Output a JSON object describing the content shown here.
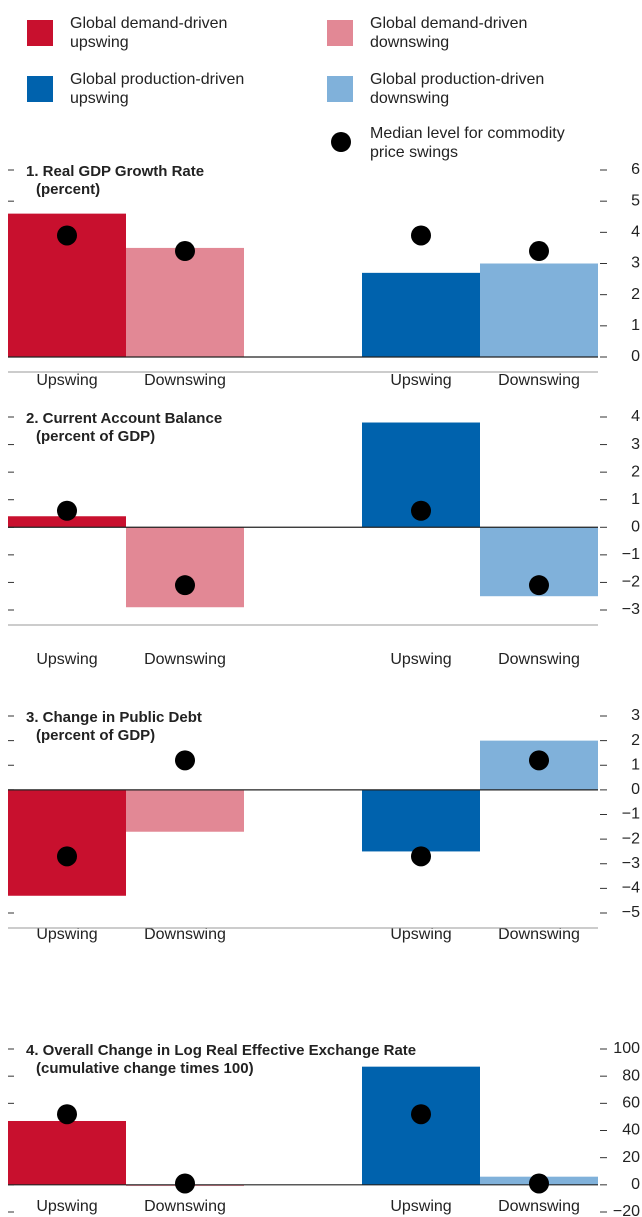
{
  "legend": [
    {
      "label": "Global demand-driven upswing",
      "color": "#c8102e"
    },
    {
      "label": "Global demand-driven downswing",
      "color": "#e28895"
    },
    {
      "label": "Global production-driven upswing",
      "color": "#0062ad"
    },
    {
      "label": "Global production-driven downswing",
      "color": "#80b1da"
    },
    {
      "label": "Median level for commodity price swings",
      "color": "#000000"
    }
  ],
  "chart_data": [
    {
      "type": "bar",
      "title": "1. Real GDP Growth Rate",
      "subtitle": "(percent)",
      "categories": [
        "Upswing",
        "Downswing",
        "Upswing",
        "Downswing"
      ],
      "values": [
        4.6,
        3.5,
        2.7,
        3.0
      ],
      "medians": [
        3.9,
        3.4,
        3.9,
        3.4
      ],
      "colors": [
        "#c8102e",
        "#e28895",
        "#0062ad",
        "#80b1da"
      ],
      "ylim": [
        0,
        6
      ],
      "yticks": [
        0,
        1,
        2,
        3,
        4,
        5,
        6
      ]
    },
    {
      "type": "bar",
      "title": "2. Current Account Balance",
      "subtitle": "(percent of GDP)",
      "categories": [
        "Upswing",
        "Downswing",
        "Upswing",
        "Downswing"
      ],
      "values": [
        0.4,
        -2.9,
        3.8,
        -2.5
      ],
      "medians": [
        0.6,
        -2.1,
        0.6,
        -2.1
      ],
      "colors": [
        "#c8102e",
        "#e28895",
        "#0062ad",
        "#80b1da"
      ],
      "ylim": [
        -3,
        4
      ],
      "yticks": [
        {
          "value": -3,
          "label": "−3"
        },
        {
          "value": -2,
          "label": "−2"
        },
        {
          "value": -1,
          "label": "−1"
        },
        0,
        1,
        2,
        3,
        4
      ]
    },
    {
      "type": "bar",
      "title": "3. Change in Public Debt",
      "subtitle": "(percent of GDP)",
      "categories": [
        "Upswing",
        "Downswing",
        "Upswing",
        "Downswing"
      ],
      "values": [
        -4.3,
        -1.7,
        -2.5,
        2.0
      ],
      "medians": [
        -2.7,
        1.2,
        -2.7,
        1.2
      ],
      "colors": [
        "#c8102e",
        "#e28895",
        "#0062ad",
        "#80b1da"
      ],
      "ylim": [
        -5,
        3
      ],
      "yticks": [
        {
          "value": -5,
          "label": "−5"
        },
        {
          "value": -4,
          "label": "−4"
        },
        {
          "value": -3,
          "label": "−3"
        },
        {
          "value": -2,
          "label": "−2"
        },
        {
          "value": -1,
          "label": "−1"
        },
        0,
        1,
        2,
        3
      ]
    },
    {
      "type": "bar",
      "title": "4. Overall Change in Log Real Effective Exchange Rate",
      "subtitle": "(cumulative change times 100)",
      "categories": [
        "Upswing",
        "Downswing",
        "Upswing",
        "Downswing"
      ],
      "values": [
        47,
        0,
        87,
        6
      ],
      "medians": [
        52,
        1,
        52,
        1
      ],
      "colors": [
        "#c8102e",
        "#e28895",
        "#0062ad",
        "#80b1da"
      ],
      "ylim": [
        -20,
        100
      ],
      "yticks": [
        {
          "value": -20,
          "label": "−20"
        },
        0,
        20,
        40,
        60,
        80,
        100
      ]
    }
  ]
}
